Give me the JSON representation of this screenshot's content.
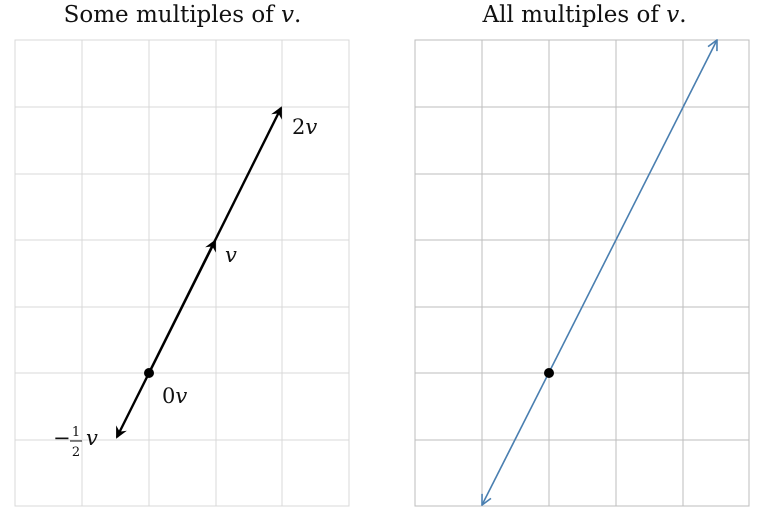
{
  "left_panel": {
    "title_prefix": "Some multiples of ",
    "title_var": "v",
    "title_suffix": ".",
    "labels": {
      "two_v_coef": "2",
      "one_v": "v",
      "zero_v_coef": "0",
      "var": "v",
      "neg_half_minus": "−",
      "frac_num": "1",
      "frac_den": "2"
    }
  },
  "right_panel": {
    "title_prefix": "All multiples of ",
    "title_var": "v",
    "title_suffix": "."
  },
  "colors": {
    "grid": "#d9d9d9",
    "grid_right": "#bdbdbd",
    "vector": "#000000",
    "line": "#4a7fb0"
  }
}
